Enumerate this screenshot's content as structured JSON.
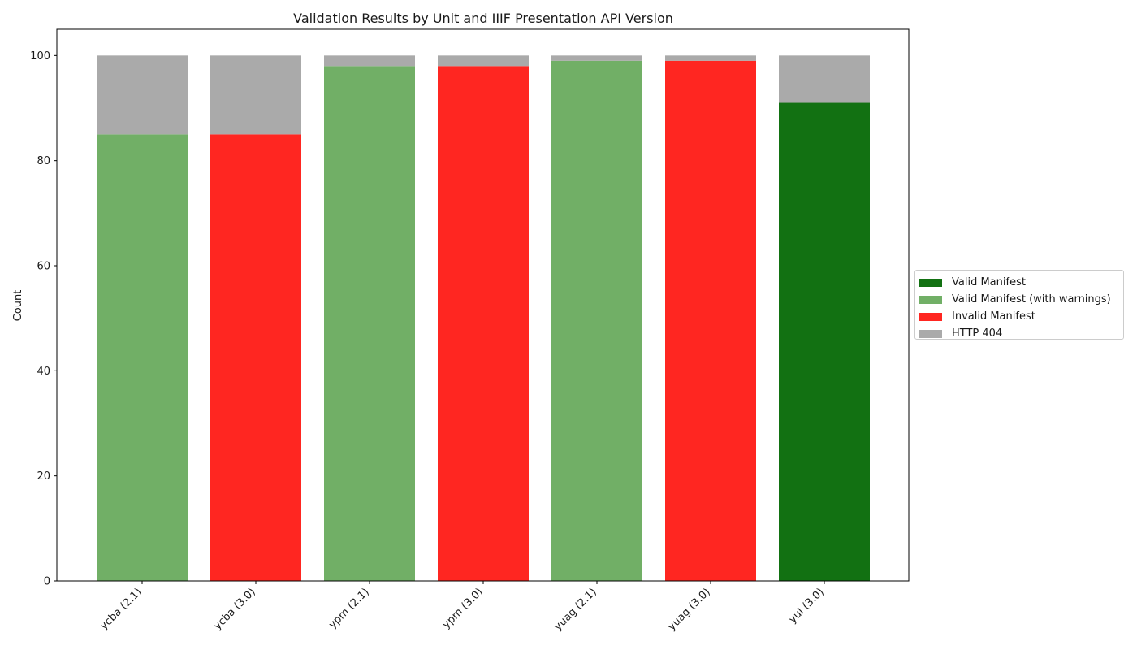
{
  "chart_data": {
    "type": "bar",
    "stacked": true,
    "title": "Validation Results by Unit and IIIF Presentation API Version",
    "xlabel": "",
    "ylabel": "Count",
    "ylim": [
      0,
      105
    ],
    "yticks": [
      0,
      20,
      40,
      60,
      80,
      100
    ],
    "grid": false,
    "legend_placement": "center-right-outside",
    "categories": [
      "ycba (2.1)",
      "ycba (3.0)",
      "ypm (2.1)",
      "ypm (3.0)",
      "yuag (2.1)",
      "yuag (3.0)",
      "yul (3.0)"
    ],
    "series": [
      {
        "name": "Valid Manifest",
        "color": "#127112",
        "values": [
          0,
          0,
          0,
          0,
          0,
          0,
          91
        ]
      },
      {
        "name": "Valid Manifest (with warnings)",
        "color": "#71af66",
        "values": [
          85,
          0,
          98,
          0,
          99,
          0,
          0
        ]
      },
      {
        "name": "Invalid Manifest",
        "color": "#ff2621",
        "values": [
          0,
          85,
          0,
          98,
          0,
          99,
          0
        ]
      },
      {
        "name": "HTTP 404",
        "color": "#aaaaaa",
        "values": [
          15,
          15,
          2,
          2,
          1,
          1,
          9
        ]
      }
    ]
  }
}
